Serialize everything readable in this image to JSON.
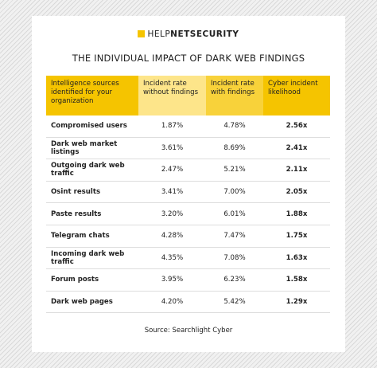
{
  "logo": {
    "light": "HELP",
    "bold": "NETSECURITY"
  },
  "title": "THE INDIVIDUAL IMPACT OF DARK WEB FINDINGS",
  "table": {
    "header": [
      "Intelligence sources identified for your organization",
      "Incident rate without findings",
      "Incident rate with findings",
      "Cyber incident likelihood"
    ],
    "rows": [
      [
        "Compromised users",
        "1.87%",
        "4.78%",
        "2.56x"
      ],
      [
        "Dark web market listings",
        "3.61%",
        "8.69%",
        "2.41x"
      ],
      [
        "Outgoing dark web traffic",
        "2.47%",
        "5.21%",
        "2.11x"
      ],
      [
        "Osint results",
        "3.41%",
        "7.00%",
        "2.05x"
      ],
      [
        "Paste results",
        "3.20%",
        "6.01%",
        "1.88x"
      ],
      [
        "Telegram chats",
        "4.28%",
        "7.47%",
        "1.75x"
      ],
      [
        "Incoming dark web traffic",
        "4.35%",
        "7.08%",
        "1.63x"
      ],
      [
        "Forum posts",
        "3.95%",
        "6.23%",
        "1.58x"
      ],
      [
        "Dark web pages",
        "4.20%",
        "5.42%",
        "1.29x"
      ]
    ]
  },
  "source": "Source: Searchlight Cyber"
}
